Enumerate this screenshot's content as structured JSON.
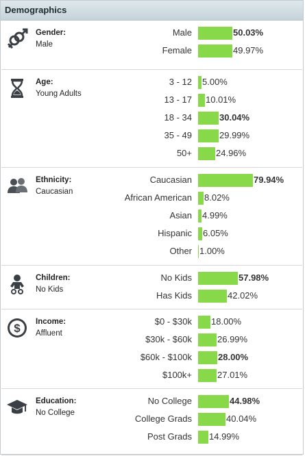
{
  "title": "Demographics",
  "colors": {
    "bar": "#88d94a",
    "header_bg": "#cdd9df",
    "alt_row": "#f2f2f2"
  },
  "sections": [
    {
      "icon": "gender-icon",
      "title": "Gender:",
      "value": "Male",
      "rows": [
        {
          "label": "Male",
          "pct": "50.03%",
          "value": 50.03,
          "bold": true
        },
        {
          "label": "Female",
          "pct": "49.97%",
          "value": 49.97,
          "bold": false
        }
      ]
    },
    {
      "icon": "hourglass-icon",
      "title": "Age:",
      "value": "Young Adults",
      "rows": [
        {
          "label": "3 - 12",
          "pct": "5.00%",
          "value": 5.0,
          "bold": false
        },
        {
          "label": "13 - 17",
          "pct": "10.01%",
          "value": 10.01,
          "bold": false
        },
        {
          "label": "18 - 34",
          "pct": "30.04%",
          "value": 30.04,
          "bold": true
        },
        {
          "label": "35 - 49",
          "pct": "29.99%",
          "value": 29.99,
          "bold": false
        },
        {
          "label": "50+",
          "pct": "24.96%",
          "value": 24.96,
          "bold": false
        }
      ]
    },
    {
      "icon": "people-icon",
      "title": "Ethnicity:",
      "value": "Caucasian",
      "rows": [
        {
          "label": "Caucasian",
          "pct": "79.94%",
          "value": 79.94,
          "bold": true
        },
        {
          "label": "African American",
          "pct": "8.02%",
          "value": 8.02,
          "bold": false
        },
        {
          "label": "Asian",
          "pct": "4.99%",
          "value": 4.99,
          "bold": false
        },
        {
          "label": "Hispanic",
          "pct": "6.05%",
          "value": 6.05,
          "bold": false
        },
        {
          "label": "Other",
          "pct": "1.00%",
          "value": 1.0,
          "bold": false
        }
      ]
    },
    {
      "icon": "baby-icon",
      "title": "Children:",
      "value": "No Kids",
      "rows": [
        {
          "label": "No Kids",
          "pct": "57.98%",
          "value": 57.98,
          "bold": true
        },
        {
          "label": "Has Kids",
          "pct": "42.02%",
          "value": 42.02,
          "bold": false
        }
      ]
    },
    {
      "icon": "dollar-icon",
      "title": "Income:",
      "value": "Affluent",
      "rows": [
        {
          "label": "$0 - $30k",
          "pct": "18.00%",
          "value": 18.0,
          "bold": false
        },
        {
          "label": "$30k - $60k",
          "pct": "26.99%",
          "value": 26.99,
          "bold": false
        },
        {
          "label": "$60k - $100k",
          "pct": "28.00%",
          "value": 28.0,
          "bold": true
        },
        {
          "label": "$100k+",
          "pct": "27.01%",
          "value": 27.01,
          "bold": false
        }
      ]
    },
    {
      "icon": "graduation-cap-icon",
      "title": "Education:",
      "value": "No College",
      "rows": [
        {
          "label": "No College",
          "pct": "44.98%",
          "value": 44.98,
          "bold": true
        },
        {
          "label": "College Grads",
          "pct": "40.04%",
          "value": 40.04,
          "bold": false
        },
        {
          "label": "Post Grads",
          "pct": "14.99%",
          "value": 14.99,
          "bold": false
        }
      ]
    }
  ]
}
